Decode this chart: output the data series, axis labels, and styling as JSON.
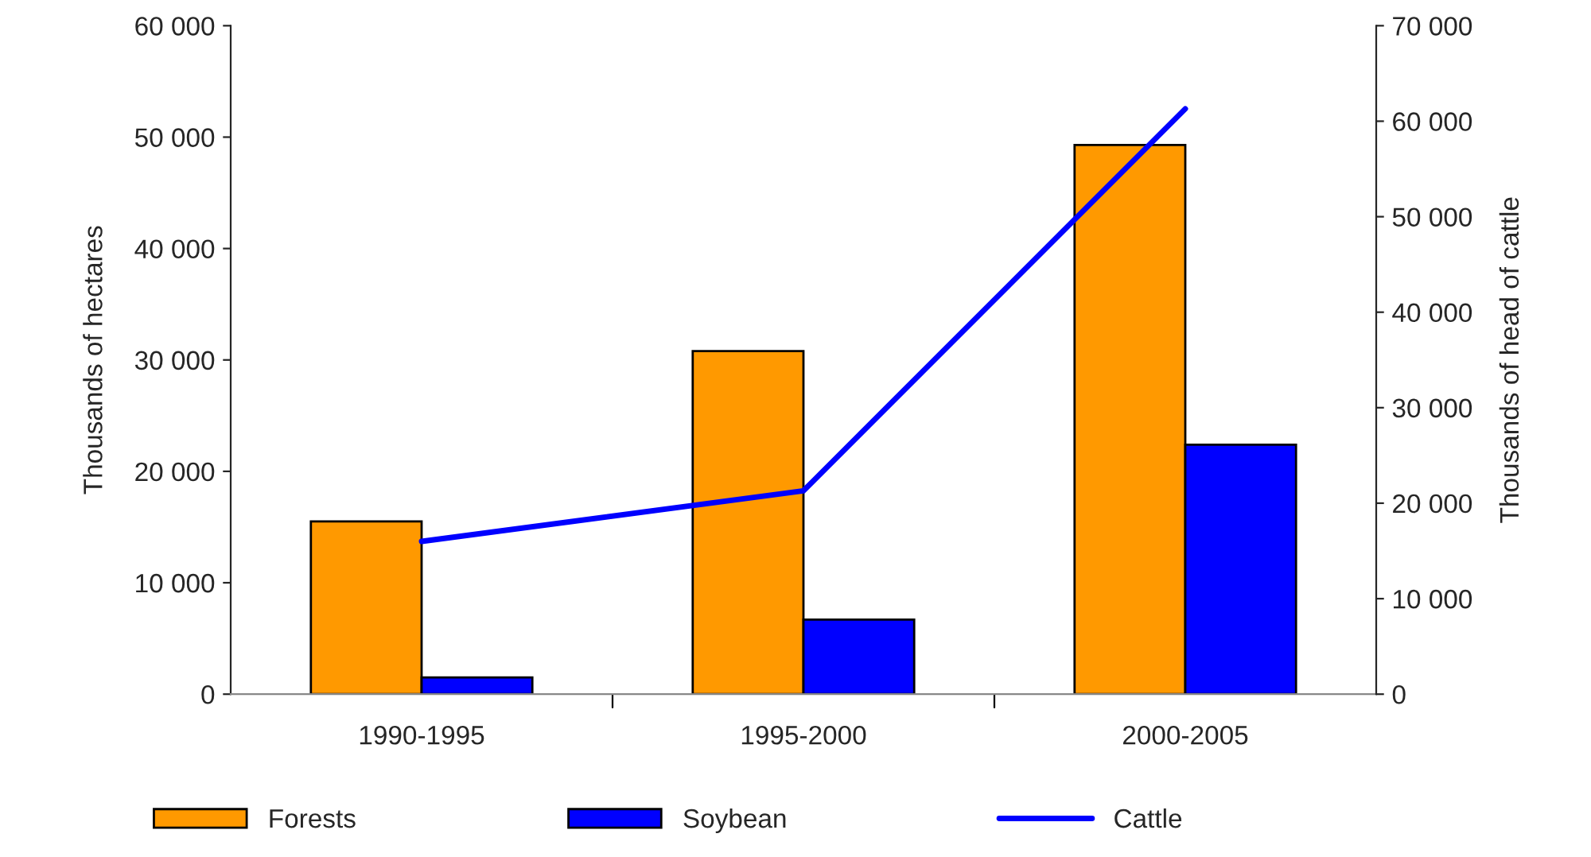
{
  "chart_data": {
    "type": "bar",
    "categories": [
      "1990-1995",
      "1995-2000",
      "2000-2005"
    ],
    "series": [
      {
        "name": "Forests",
        "color": "#ff9900",
        "values": [
          15500,
          30800,
          49300
        ]
      },
      {
        "name": "Soybean",
        "color": "#0000ff",
        "values": [
          1500,
          6700,
          22400
        ]
      },
      {
        "name": "Cattle",
        "color": "#0000ff",
        "type": "line",
        "axis": "y2",
        "values": [
          16000,
          21300,
          61300
        ]
      }
    ],
    "ylabel": "Thousands of hectares",
    "y2label": "Thousands of head of cattle",
    "ylim": [
      0,
      60000
    ],
    "yticks": [
      0,
      {
        "value": 10000,
        "label": "10 000"
      },
      {
        "value": 20000,
        "label": "20 000"
      },
      {
        "value": 30000,
        "label": "30 000"
      },
      {
        "value": 40000,
        "label": "40 000"
      },
      {
        "value": 50000,
        "label": "50 000"
      },
      {
        "value": 60000,
        "label": "60 000"
      }
    ],
    "y2lim": [
      0,
      70000
    ],
    "y2ticks": [
      0,
      {
        "value": 10000,
        "label": "10 000"
      },
      {
        "value": 20000,
        "label": "20 000"
      },
      {
        "value": 30000,
        "label": "30 000"
      },
      {
        "value": 40000,
        "label": "40 000"
      },
      {
        "value": 50000,
        "label": "50 000"
      },
      {
        "value": 60000,
        "label": "60 000"
      },
      {
        "value": 70000,
        "label": "70 000"
      }
    ],
    "legend": "bottom",
    "grid": false,
    "marker": "none"
  }
}
